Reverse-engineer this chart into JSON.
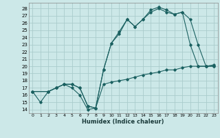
{
  "xlabel": "Humidex (Indice chaleur)",
  "bg_color": "#cce8e8",
  "grid_color": "#aacccc",
  "line_color": "#1a6060",
  "xlim": [
    -0.5,
    23.5
  ],
  "ylim": [
    13.5,
    28.8
  ],
  "yticks": [
    14,
    15,
    16,
    17,
    18,
    19,
    20,
    21,
    22,
    23,
    24,
    25,
    26,
    27,
    28
  ],
  "xticks": [
    0,
    1,
    2,
    3,
    4,
    5,
    6,
    7,
    8,
    9,
    10,
    11,
    12,
    13,
    14,
    15,
    16,
    17,
    18,
    19,
    20,
    21,
    22,
    23
  ],
  "series": [
    {
      "x": [
        0,
        1,
        2,
        3,
        4,
        5,
        6,
        7,
        8,
        9,
        10,
        11,
        12,
        13,
        14,
        15,
        16,
        17,
        18,
        19,
        20,
        21,
        22,
        23
      ],
      "y": [
        16.5,
        15.0,
        16.5,
        17.0,
        17.5,
        17.0,
        16.0,
        14.0,
        14.2,
        17.5,
        17.8,
        18.0,
        18.2,
        18.5,
        18.8,
        19.0,
        19.2,
        19.5,
        19.5,
        19.8,
        20.0,
        20.0,
        20.0,
        20.0
      ]
    },
    {
      "x": [
        0,
        2,
        3,
        4,
        5,
        6,
        7,
        8,
        9,
        10,
        11,
        12,
        13,
        14,
        15,
        16,
        17,
        18,
        19,
        20,
        21,
        22,
        23
      ],
      "y": [
        16.5,
        16.5,
        17.0,
        17.5,
        17.5,
        17.0,
        14.5,
        14.2,
        19.5,
        23.2,
        24.5,
        26.5,
        25.5,
        26.5,
        27.5,
        28.0,
        27.5,
        27.2,
        27.5,
        23.0,
        20.0,
        20.0,
        20.0
      ]
    },
    {
      "x": [
        0,
        2,
        3,
        4,
        5,
        6,
        7,
        8,
        9,
        10,
        11,
        12,
        13,
        14,
        15,
        16,
        17,
        18,
        19,
        20,
        21,
        22,
        23
      ],
      "y": [
        16.5,
        16.5,
        17.0,
        17.5,
        17.5,
        17.0,
        14.5,
        14.2,
        19.5,
        23.2,
        24.8,
        26.5,
        25.5,
        26.5,
        27.8,
        28.2,
        27.8,
        27.2,
        27.5,
        26.5,
        23.0,
        20.0,
        20.2
      ]
    }
  ]
}
